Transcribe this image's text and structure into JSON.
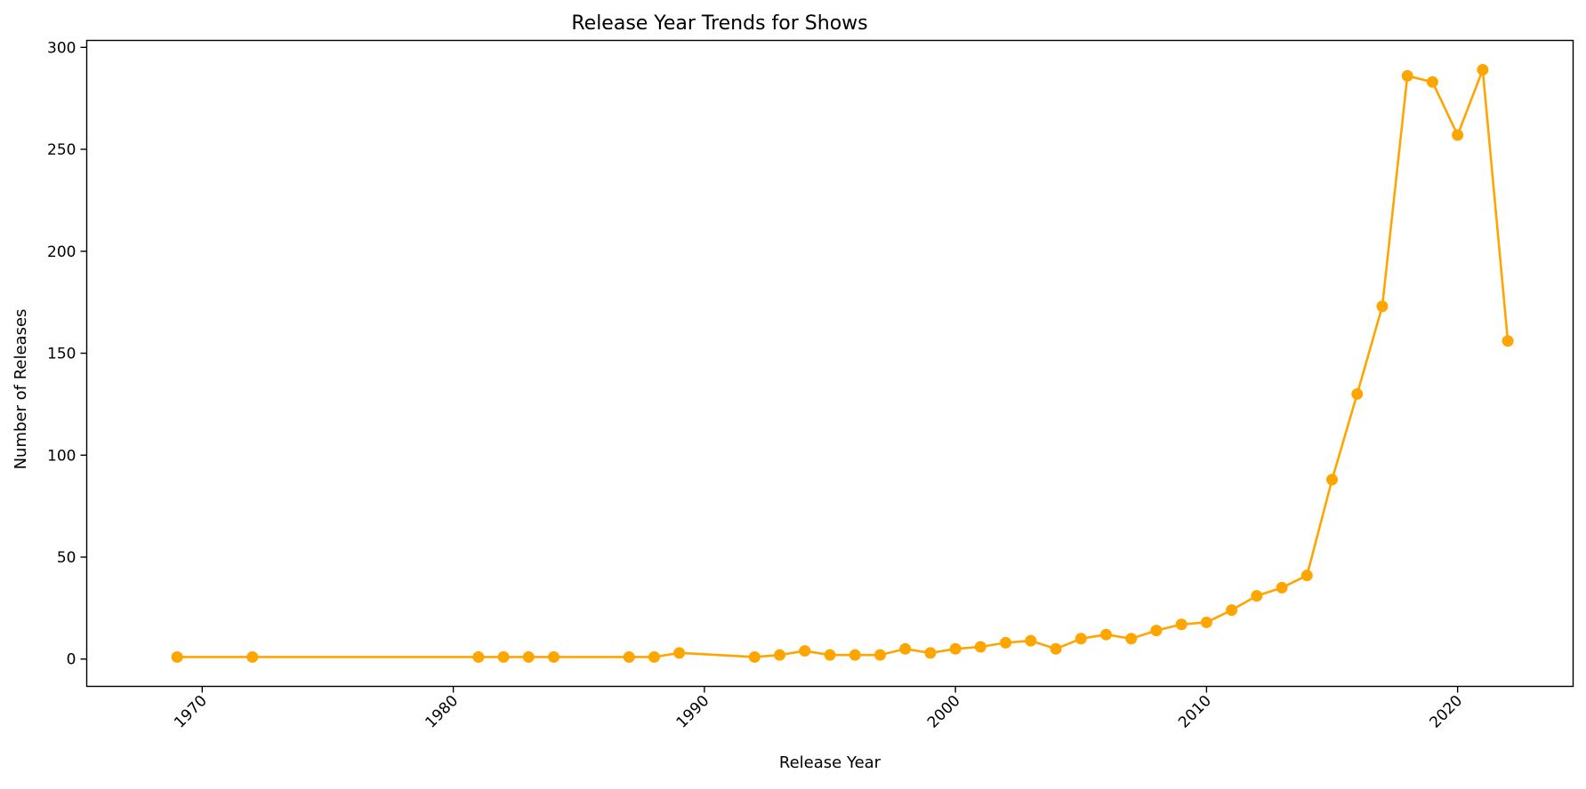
{
  "chart_data": {
    "type": "line",
    "title": "Release Year Trends for Shows",
    "xlabel": "Release Year",
    "ylabel": "Number of Releases",
    "xlim": [
      1965.4,
      2024.6
    ],
    "ylim": [
      -13.4,
      303.4
    ],
    "x_ticks": [
      1970,
      1980,
      1990,
      2000,
      2010,
      2020
    ],
    "y_ticks": [
      0,
      50,
      100,
      150,
      200,
      250,
      300
    ],
    "grid": false,
    "legend": "none",
    "color": "#FFA500",
    "marker": "circle",
    "series": [
      {
        "x": [
          1969,
          1972,
          1981,
          1982,
          1983,
          1984,
          1987,
          1988,
          1989,
          1992,
          1993,
          1994,
          1995,
          1996,
          1997,
          1998,
          1999,
          2000,
          2001,
          2002,
          2003,
          2004,
          2005,
          2006,
          2007,
          2008,
          2009,
          2010,
          2011,
          2012,
          2013,
          2014,
          2015,
          2016,
          2017,
          2018,
          2019,
          2020,
          2021,
          2022
        ],
        "values": [
          1,
          1,
          1,
          1,
          1,
          1,
          1,
          1,
          3,
          1,
          2,
          4,
          2,
          2,
          2,
          5,
          3,
          5,
          6,
          8,
          9,
          5,
          10,
          12,
          10,
          14,
          17,
          18,
          24,
          31,
          35,
          41,
          88,
          130,
          173,
          286,
          283,
          257,
          289,
          156
        ]
      }
    ]
  }
}
